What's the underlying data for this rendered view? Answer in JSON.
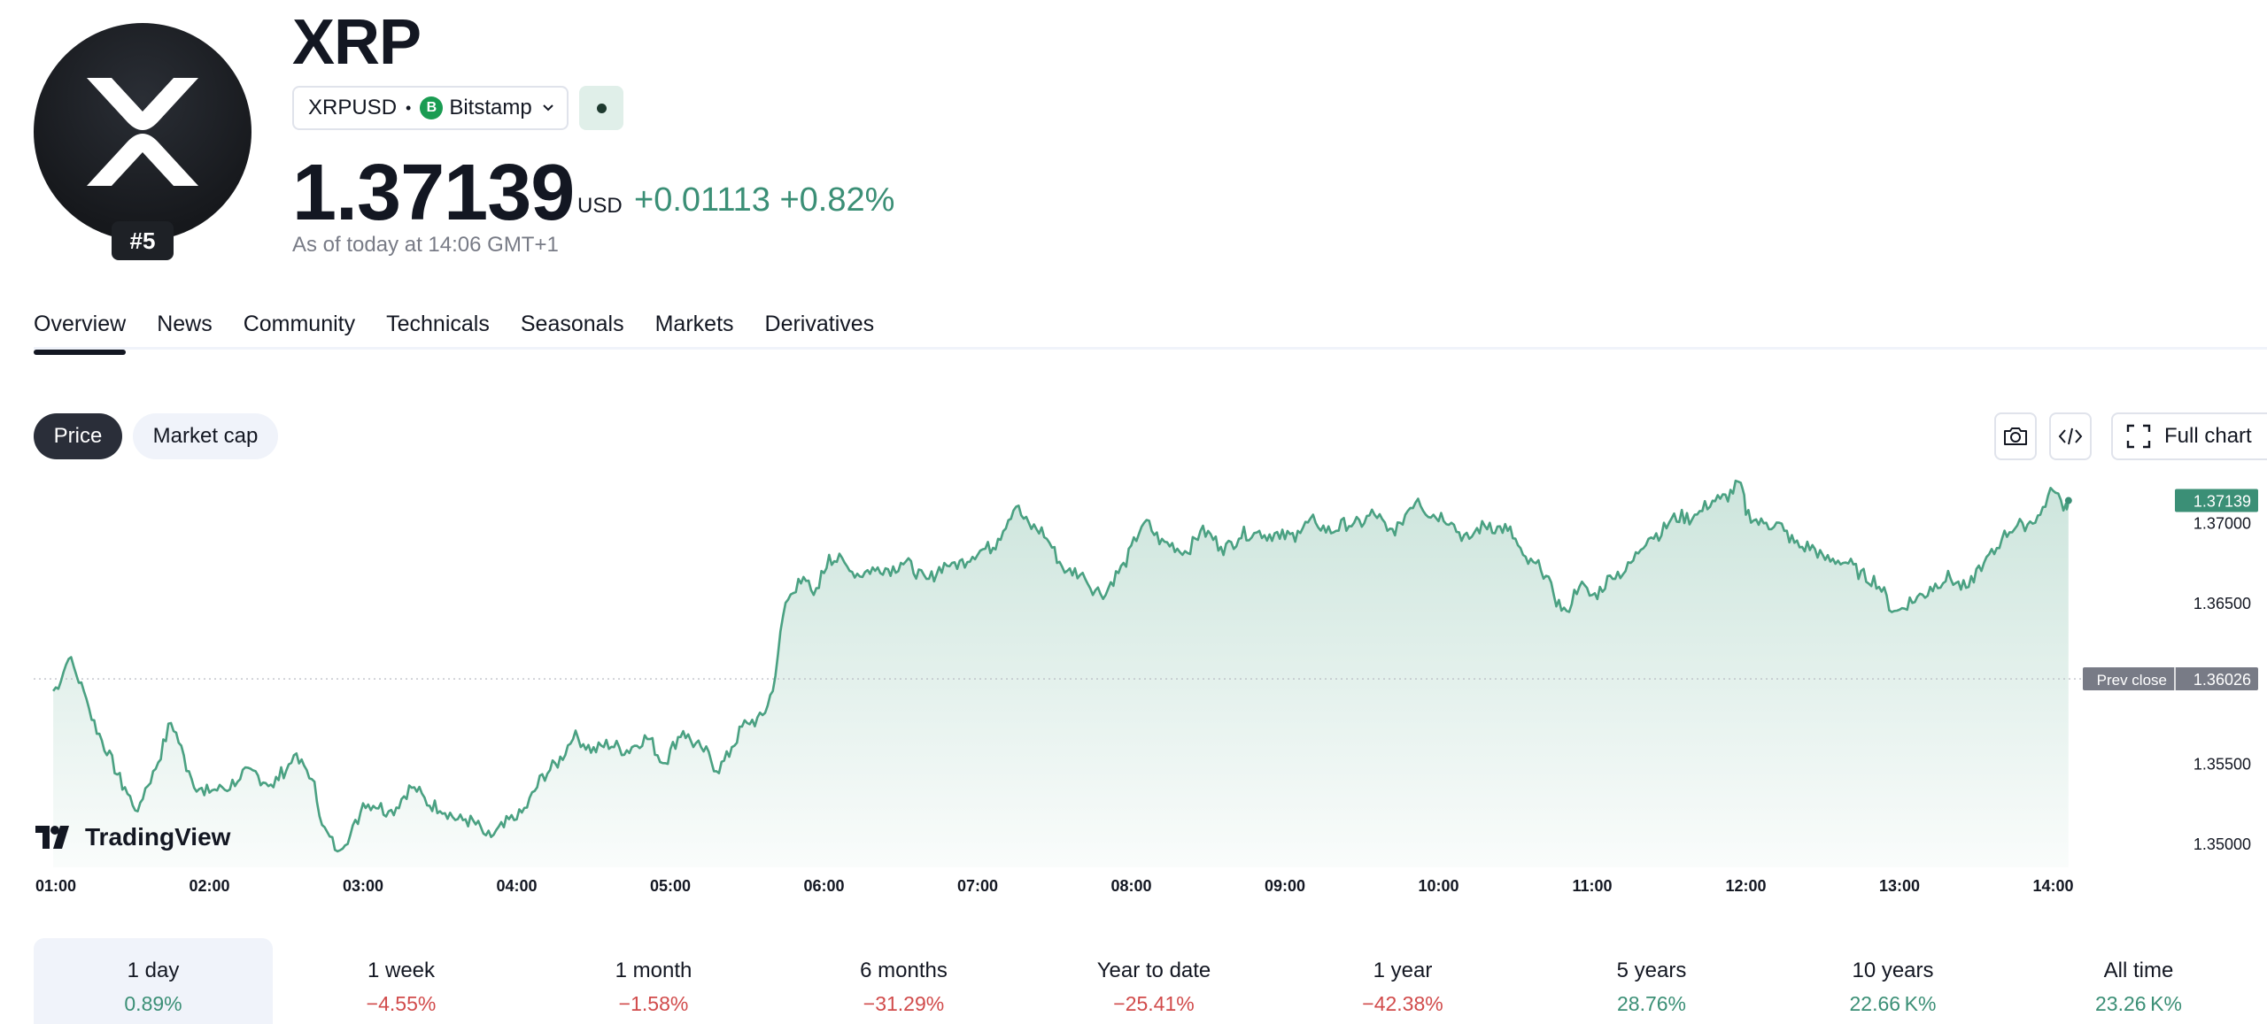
{
  "header": {
    "title": "XRP",
    "rank": "#5",
    "symbol": "XRPUSD",
    "separator": "•",
    "exchange": "Bitstamp",
    "exchange_icon_letter": "B",
    "price": "1.37139",
    "currency": "USD",
    "change": "+0.01113 +0.82%",
    "as_of": "As of today at 14:06 GMT+1",
    "status": "market-open"
  },
  "tabs": [
    {
      "label": "Overview",
      "active": true
    },
    {
      "label": "News"
    },
    {
      "label": "Community"
    },
    {
      "label": "Technicals"
    },
    {
      "label": "Seasonals"
    },
    {
      "label": "Markets"
    },
    {
      "label": "Derivatives"
    }
  ],
  "toggles": {
    "price": "Price",
    "market_cap": "Market cap"
  },
  "tools": {
    "camera_icon": "camera-icon",
    "embed_icon": "code-icon",
    "fullscreen_icon": "fullscreen-icon",
    "full_chart": "Full chart"
  },
  "branding": {
    "tradingview": "TradingView"
  },
  "colors": {
    "up": "#3b8f76",
    "down": "#d14b4b",
    "line": "#4aa182"
  },
  "chart_data": {
    "type": "area",
    "x_ticks": [
      "01:00",
      "02:00",
      "03:00",
      "04:00",
      "05:00",
      "06:00",
      "07:00",
      "08:00",
      "09:00",
      "10:00",
      "11:00",
      "12:00",
      "13:00",
      "14:00"
    ],
    "y_ticks": [
      "1.37000",
      "1.36500",
      "1.35500",
      "1.35000"
    ],
    "ylim": [
      1.3485,
      1.3728
    ],
    "last_price": "1.37139",
    "prev_close_label": "Prev close",
    "prev_close": "1.36026",
    "points": [
      [
        "00:59",
        1.3595
      ],
      [
        "01:05",
        1.3615
      ],
      [
        "01:12",
        1.359
      ],
      [
        "01:20",
        1.3555
      ],
      [
        "01:27",
        1.3535
      ],
      [
        "01:32",
        1.352
      ],
      [
        "01:38",
        1.3545
      ],
      [
        "01:45",
        1.3575
      ],
      [
        "01:52",
        1.3545
      ],
      [
        "01:58",
        1.353
      ],
      [
        "02:05",
        1.3535
      ],
      [
        "02:12",
        1.354
      ],
      [
        "02:18",
        1.3545
      ],
      [
        "02:25",
        1.3535
      ],
      [
        "02:33",
        1.3555
      ],
      [
        "02:40",
        1.354
      ],
      [
        "02:45",
        1.351
      ],
      [
        "02:50",
        1.3495
      ],
      [
        "02:55",
        1.3505
      ],
      [
        "03:00",
        1.3525
      ],
      [
        "03:10",
        1.352
      ],
      [
        "03:20",
        1.3535
      ],
      [
        "03:30",
        1.352
      ],
      [
        "03:40",
        1.3515
      ],
      [
        "03:48",
        1.3505
      ],
      [
        "03:55",
        1.351
      ],
      [
        "04:00",
        1.3515
      ],
      [
        "04:08",
        1.3535
      ],
      [
        "04:15",
        1.355
      ],
      [
        "04:22",
        1.3565
      ],
      [
        "04:30",
        1.356
      ],
      [
        "04:38",
        1.356
      ],
      [
        "04:45",
        1.356
      ],
      [
        "04:52",
        1.3565
      ],
      [
        "04:58",
        1.355
      ],
      [
        "05:05",
        1.357
      ],
      [
        "05:12",
        1.356
      ],
      [
        "05:18",
        1.3545
      ],
      [
        "05:24",
        1.356
      ],
      [
        "05:30",
        1.3575
      ],
      [
        "05:36",
        1.358
      ],
      [
        "05:40",
        1.3595
      ],
      [
        "05:45",
        1.365
      ],
      [
        "05:50",
        1.3665
      ],
      [
        "05:56",
        1.3655
      ],
      [
        "06:02",
        1.368
      ],
      [
        "06:10",
        1.367
      ],
      [
        "06:20",
        1.367
      ],
      [
        "06:30",
        1.3675
      ],
      [
        "06:40",
        1.3665
      ],
      [
        "06:50",
        1.3675
      ],
      [
        "07:00",
        1.368
      ],
      [
        "07:08",
        1.369
      ],
      [
        "07:15",
        1.371
      ],
      [
        "07:20",
        1.37
      ],
      [
        "07:27",
        1.369
      ],
      [
        "07:35",
        1.367
      ],
      [
        "07:42",
        1.3665
      ],
      [
        "07:50",
        1.3655
      ],
      [
        "07:57",
        1.3675
      ],
      [
        "08:05",
        1.37
      ],
      [
        "08:12",
        1.369
      ],
      [
        "08:20",
        1.368
      ],
      [
        "08:27",
        1.3695
      ],
      [
        "08:35",
        1.3685
      ],
      [
        "08:42",
        1.369
      ],
      [
        "08:50",
        1.3695
      ],
      [
        "08:58",
        1.369
      ],
      [
        "09:05",
        1.3695
      ],
      [
        "09:12",
        1.37
      ],
      [
        "09:20",
        1.3695
      ],
      [
        "09:27",
        1.37
      ],
      [
        "09:35",
        1.3705
      ],
      [
        "09:40",
        1.3695
      ],
      [
        "09:45",
        1.37
      ],
      [
        "09:52",
        1.3715
      ],
      [
        "09:58",
        1.3705
      ],
      [
        "10:05",
        1.37
      ],
      [
        "10:12",
        1.369
      ],
      [
        "10:20",
        1.37
      ],
      [
        "10:27",
        1.3695
      ],
      [
        "10:33",
        1.368
      ],
      [
        "10:40",
        1.367
      ],
      [
        "10:45",
        1.3655
      ],
      [
        "10:50",
        1.3645
      ],
      [
        "10:55",
        1.366
      ],
      [
        "11:00",
        1.3655
      ],
      [
        "11:08",
        1.3665
      ],
      [
        "11:15",
        1.3675
      ],
      [
        "11:22",
        1.369
      ],
      [
        "11:30",
        1.37
      ],
      [
        "11:40",
        1.3705
      ],
      [
        "11:50",
        1.3715
      ],
      [
        "11:58",
        1.3725
      ],
      [
        "12:00",
        1.3705
      ],
      [
        "12:08",
        1.37
      ]
    ]
  },
  "periods": [
    {
      "label": "1 day",
      "value": "0.89%",
      "dir": "pos",
      "active": true
    },
    {
      "label": "1 week",
      "value": "−4.55%",
      "dir": "neg"
    },
    {
      "label": "1 month",
      "value": "−1.58%",
      "dir": "neg"
    },
    {
      "label": "6 months",
      "value": "−31.29%",
      "dir": "neg"
    },
    {
      "label": "Year to date",
      "value": "−25.41%",
      "dir": "neg"
    },
    {
      "label": "1 year",
      "value": "−42.38%",
      "dir": "neg"
    },
    {
      "label": "5 years",
      "value": "28.76%",
      "dir": "pos"
    },
    {
      "label": "10 years",
      "value": "22.66 K%",
      "dir": "pos"
    },
    {
      "label": "All time",
      "value": "23.26 K%",
      "dir": "pos"
    }
  ]
}
